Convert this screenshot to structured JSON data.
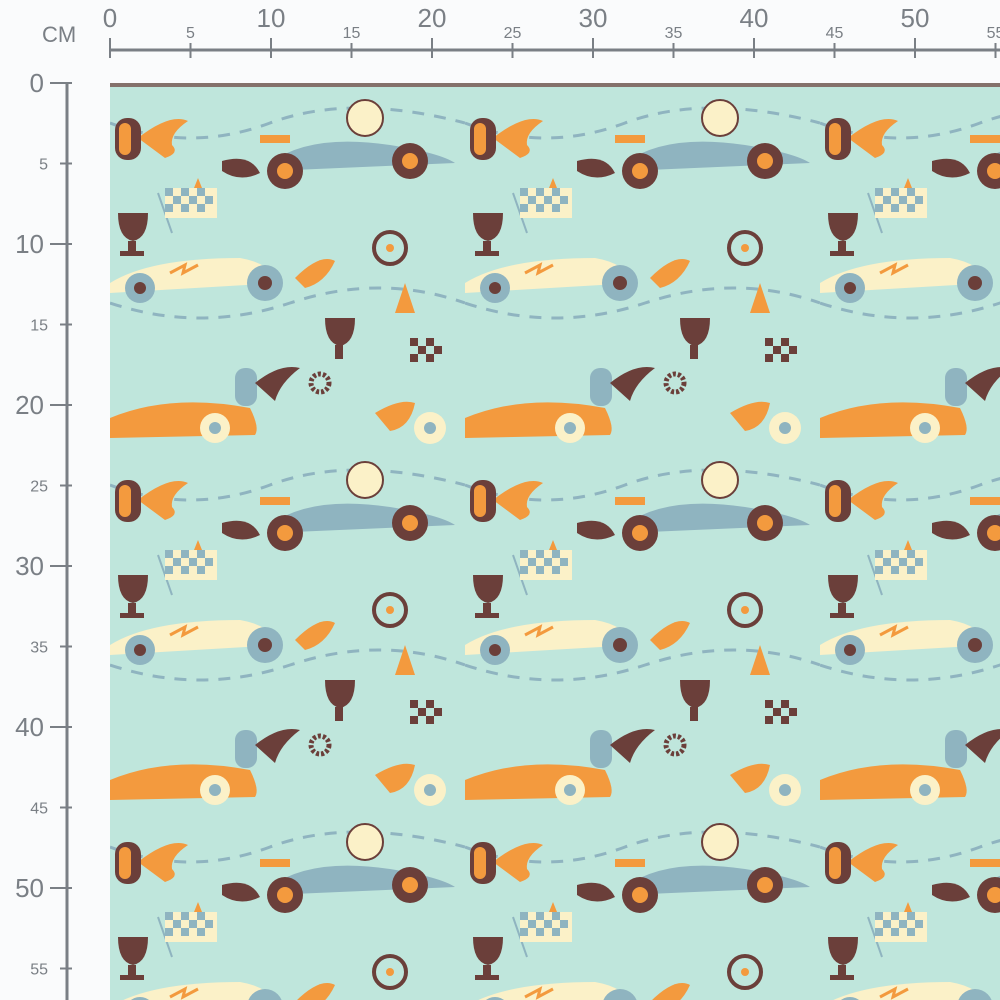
{
  "ruler": {
    "unit": "CM",
    "top_labels": [
      "0",
      "5",
      "10",
      "15",
      "20",
      "25",
      "30",
      "35",
      "40",
      "45",
      "50",
      "55"
    ],
    "left_labels": [
      "0",
      "5",
      "10",
      "15",
      "20",
      "25",
      "30",
      "35",
      "40",
      "45",
      "50",
      "55"
    ]
  },
  "fabric": {
    "theme": "racing cars pattern",
    "colors": {
      "background": "#bfe6dc",
      "orange": "#f39a3e",
      "brown": "#6b3f3a",
      "blue_grey": "#8fb4c0",
      "cream": "#fbf1c8",
      "ruler": "#7a7f85"
    }
  }
}
